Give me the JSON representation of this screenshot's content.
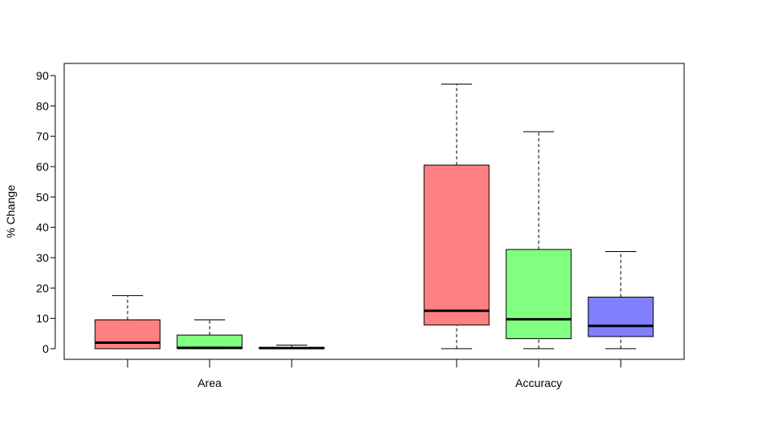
{
  "chart_data": {
    "type": "boxplot",
    "ylabel": "% Change",
    "ylim": [
      -3.5,
      94
    ],
    "yticks": [
      0,
      10,
      20,
      30,
      40,
      50,
      60,
      70,
      80,
      90
    ],
    "groups": [
      {
        "label": "Area",
        "boxes": [
          {
            "color": "#ff8080",
            "min": 0,
            "q1": 0,
            "median": 2,
            "q3": 9.5,
            "max": 17.5
          },
          {
            "color": "#80ff80",
            "min": 0,
            "q1": 0,
            "median": 0.3,
            "q3": 4.5,
            "max": 9.5
          },
          {
            "color": "#8080ff",
            "min": 0,
            "q1": 0,
            "median": 0.2,
            "q3": 0.4,
            "max": 1.2
          }
        ]
      },
      {
        "label": "Accuracy",
        "boxes": [
          {
            "color": "#ff8080",
            "min": 0,
            "q1": 7.8,
            "median": 12.5,
            "q3": 60.5,
            "max": 87.2
          },
          {
            "color": "#80ff80",
            "min": 0,
            "q1": 3.3,
            "median": 9.7,
            "q3": 32.7,
            "max": 71.5
          },
          {
            "color": "#8080ff",
            "min": 0,
            "q1": 4,
            "median": 7.5,
            "q3": 17,
            "max": 32
          }
        ]
      }
    ]
  }
}
